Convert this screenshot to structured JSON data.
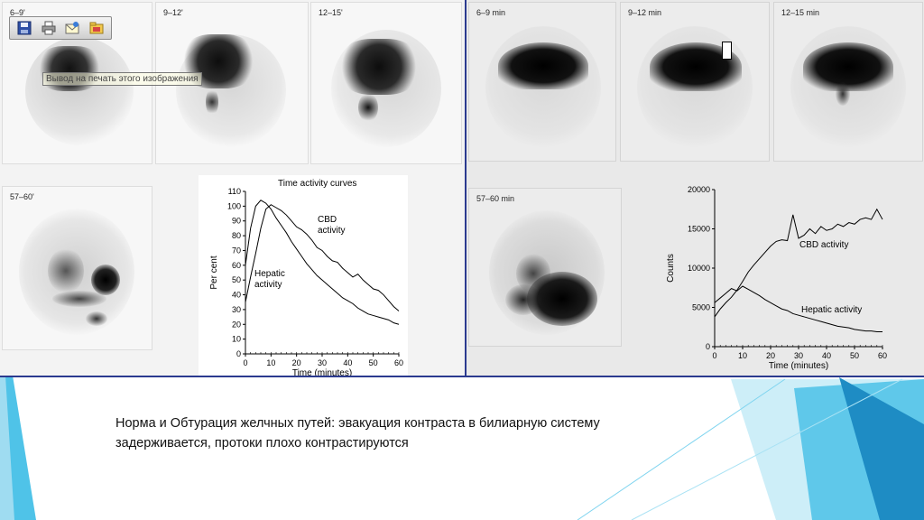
{
  "toolbar": {
    "buttons": [
      {
        "icon": "save-icon"
      },
      {
        "icon": "print-icon"
      },
      {
        "icon": "email-icon"
      },
      {
        "icon": "folder-icon"
      }
    ],
    "tooltip": "Вывод на печать этого изображения"
  },
  "left_panel": {
    "scans": [
      {
        "label": "6–9'"
      },
      {
        "label": "9–12'"
      },
      {
        "label": "12–15'"
      },
      {
        "label": "57–60'"
      }
    ]
  },
  "right_panel": {
    "scans": [
      {
        "label": "6–9 min"
      },
      {
        "label": "9–12 min"
      },
      {
        "label": "12–15 min"
      },
      {
        "label": "57–60 min"
      }
    ]
  },
  "caption": {
    "line1": "Норма и Обтурация желчных путей: эвакуация контраста в билиарную систему",
    "line2": "задерживается, протоки плохо контрастируются"
  },
  "chart_data": [
    {
      "type": "line",
      "title": "Time activity curves",
      "xlabel": "Time (minutes)",
      "ylabel": "Per cent",
      "xlim": [
        0,
        60
      ],
      "ylim": [
        0,
        110
      ],
      "xticks": [
        0,
        10,
        20,
        30,
        40,
        50,
        60
      ],
      "yticks": [
        0,
        10,
        20,
        30,
        40,
        50,
        60,
        70,
        80,
        90,
        100,
        110
      ],
      "series": [
        {
          "name": "CBD activity",
          "x": [
            0,
            2,
            4,
            6,
            8,
            10,
            12,
            14,
            16,
            18,
            20,
            22,
            24,
            26,
            28,
            30,
            32,
            34,
            36,
            38,
            40,
            42,
            44,
            46,
            48,
            50,
            52,
            54,
            56,
            58,
            60
          ],
          "y": [
            35,
            52,
            68,
            85,
            98,
            101,
            99,
            97,
            94,
            90,
            86,
            84,
            81,
            77,
            72,
            70,
            66,
            63,
            62,
            58,
            55,
            52,
            54,
            50,
            47,
            44,
            43,
            40,
            36,
            32,
            29
          ]
        },
        {
          "name": "Hepatic activity",
          "x": [
            0,
            2,
            4,
            6,
            8,
            10,
            12,
            14,
            16,
            18,
            20,
            22,
            24,
            26,
            28,
            30,
            32,
            34,
            36,
            38,
            40,
            42,
            44,
            46,
            48,
            50,
            52,
            54,
            56,
            58,
            60
          ],
          "y": [
            60,
            85,
            100,
            104,
            102,
            98,
            92,
            87,
            82,
            76,
            71,
            66,
            61,
            57,
            53,
            50,
            47,
            44,
            41,
            38,
            36,
            34,
            31,
            29,
            27,
            26,
            25,
            24,
            23,
            21,
            20
          ]
        }
      ],
      "annotations": [
        "CBD activity",
        "Hepatic activity"
      ]
    },
    {
      "type": "line",
      "title": "",
      "xlabel": "Time (minutes)",
      "ylabel": "Counts",
      "xlim": [
        0,
        60
      ],
      "ylim": [
        0,
        20000
      ],
      "xticks": [
        0,
        10,
        20,
        30,
        40,
        50,
        60
      ],
      "yticks": [
        0,
        5000,
        10000,
        15000,
        20000
      ],
      "series": [
        {
          "name": "CBD activity",
          "x": [
            0,
            2,
            4,
            6,
            8,
            10,
            12,
            14,
            16,
            18,
            20,
            22,
            24,
            26,
            28,
            30,
            32,
            34,
            36,
            38,
            40,
            42,
            44,
            46,
            48,
            50,
            52,
            54,
            56,
            58,
            60
          ],
          "y": [
            3800,
            4800,
            5600,
            6300,
            7200,
            8300,
            9500,
            10400,
            11200,
            12000,
            12800,
            13400,
            13600,
            13500,
            16800,
            13800,
            14200,
            15000,
            14400,
            15300,
            14800,
            15000,
            15600,
            15300,
            15800,
            15600,
            16200,
            16400,
            16200,
            17500,
            16200
          ]
        },
        {
          "name": "Hepatic activity",
          "x": [
            0,
            2,
            4,
            6,
            8,
            10,
            12,
            14,
            16,
            18,
            20,
            22,
            24,
            26,
            28,
            30,
            32,
            34,
            36,
            38,
            40,
            42,
            44,
            46,
            48,
            50,
            52,
            54,
            56,
            58,
            60
          ],
          "y": [
            5600,
            6200,
            6800,
            7400,
            7100,
            7700,
            7300,
            6900,
            6500,
            6000,
            5600,
            5200,
            4800,
            4600,
            4200,
            4000,
            3800,
            3600,
            3400,
            3200,
            3000,
            2800,
            2600,
            2500,
            2400,
            2200,
            2100,
            2000,
            2000,
            1900,
            1900
          ]
        }
      ],
      "annotations": [
        "CBD activity",
        "Hepatic activity"
      ]
    }
  ],
  "colors": {
    "accent_dark": "#1e7fb5",
    "accent_light": "#4fc3e8",
    "accent_pale": "#bfe6f5",
    "frame": "#2b3a8f"
  }
}
